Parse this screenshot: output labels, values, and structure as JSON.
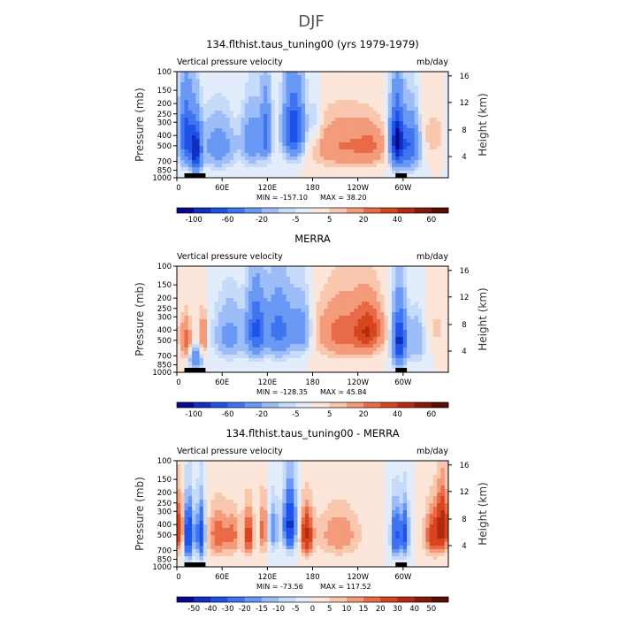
{
  "figure_title": "DJF",
  "chart_data": [
    {
      "type": "heatmap",
      "title": "134.flthist.taus_tuning00 (yrs 1979-1979)",
      "left_label": "Vertical pressure velocity",
      "units": "mb/day",
      "ylabel": "Pressure (mb)",
      "ylabel_right": "Height (km)",
      "x_ticks": [
        "0",
        "60E",
        "120E",
        "180",
        "120W",
        "60W"
      ],
      "y_ticks": [
        "100",
        "150",
        "200",
        "250",
        "300",
        "400",
        "500",
        "700",
        "850",
        "1000"
      ],
      "y_right_ticks": [
        "16",
        "12",
        "8",
        "4"
      ],
      "min_label": "MIN = -157.10",
      "max_label": "MAX = 38.20",
      "colorbar_levels": [
        -100,
        -80,
        -60,
        -40,
        -20,
        -10,
        -5,
        0,
        5,
        10,
        20,
        30,
        40,
        50,
        60
      ],
      "colorbar_labels": [
        "-100",
        "-60",
        "-20",
        "-5",
        "5",
        "20",
        "40",
        "60"
      ],
      "colorbar_colors": [
        "#08088e",
        "#0d2fc2",
        "#1e52e8",
        "#3f74f1",
        "#6a98f5",
        "#9cbdf7",
        "#c6daf9",
        "#e3ecfa",
        "#fce6da",
        "#f9c7ae",
        "#f39b7a",
        "#e96a46",
        "#d6451e",
        "#b42a10",
        "#871807",
        "#5a0c02"
      ],
      "xlim": [
        0,
        360
      ],
      "ylim_mb": [
        1000,
        100
      ],
      "field_features": [
        {
          "lon": 12,
          "plev": 400,
          "value": -70,
          "lon_width": 6,
          "p_depth": 420
        },
        {
          "lon": 25,
          "plev": 550,
          "value": -95,
          "lon_width": 5,
          "p_depth": 420
        },
        {
          "lon": 55,
          "plev": 500,
          "value": -30,
          "lon_width": 15,
          "p_depth": 380
        },
        {
          "lon": 100,
          "plev": 450,
          "value": -35,
          "lon_width": 9,
          "p_depth": 380
        },
        {
          "lon": 118,
          "plev": 380,
          "value": -50,
          "lon_width": 5,
          "p_depth": 360
        },
        {
          "lon": 155,
          "plev": 350,
          "value": -80,
          "lon_width": 9,
          "p_depth": 360
        },
        {
          "lon": 183,
          "plev": 300,
          "value": -10,
          "lon_width": 6,
          "p_depth": 250
        },
        {
          "lon": 220,
          "plev": 500,
          "value": 20,
          "lon_width": 28,
          "p_depth": 400
        },
        {
          "lon": 258,
          "plev": 500,
          "value": 15,
          "lon_width": 14,
          "p_depth": 320
        },
        {
          "lon": 292,
          "plev": 450,
          "value": -110,
          "lon_width": 6,
          "p_depth": 420
        },
        {
          "lon": 310,
          "plev": 500,
          "value": -60,
          "lon_width": 8,
          "p_depth": 380
        },
        {
          "lon": 340,
          "plev": 400,
          "value": 8,
          "lon_width": 14,
          "p_depth": 300
        }
      ]
    },
    {
      "type": "heatmap",
      "title": "MERRA",
      "left_label": "Vertical pressure velocity",
      "units": "mb/day",
      "ylabel": "Pressure (mb)",
      "ylabel_right": "Height (km)",
      "x_ticks": [
        "0",
        "60E",
        "120E",
        "180",
        "120W",
        "60W"
      ],
      "y_ticks": [
        "100",
        "150",
        "200",
        "250",
        "300",
        "400",
        "500",
        "700",
        "850",
        "1000"
      ],
      "y_right_ticks": [
        "16",
        "12",
        "8",
        "4"
      ],
      "min_label": "MIN = -128.35",
      "max_label": "MAX = 45.84",
      "colorbar_levels": [
        -100,
        -80,
        -60,
        -40,
        -20,
        -10,
        -5,
        0,
        5,
        10,
        20,
        30,
        40,
        50,
        60
      ],
      "colorbar_labels": [
        "-100",
        "-60",
        "-20",
        "-5",
        "5",
        "20",
        "40",
        "60"
      ],
      "colorbar_colors": [
        "#08088e",
        "#0d2fc2",
        "#1e52e8",
        "#3f74f1",
        "#6a98f5",
        "#9cbdf7",
        "#c6daf9",
        "#e3ecfa",
        "#fce6da",
        "#f9c7ae",
        "#f39b7a",
        "#e96a46",
        "#d6451e",
        "#b42a10",
        "#871807",
        "#5a0c02"
      ],
      "xlim": [
        0,
        360
      ],
      "ylim_mb": [
        1000,
        100
      ],
      "field_features": [
        {
          "lon": 12,
          "plev": 500,
          "value": 25,
          "lon_width": 5,
          "p_depth": 300
        },
        {
          "lon": 35,
          "plev": 450,
          "value": 20,
          "lon_width": 4,
          "p_depth": 300
        },
        {
          "lon": 25,
          "plev": 750,
          "value": -40,
          "lon_width": 5,
          "p_depth": 250
        },
        {
          "lon": 70,
          "plev": 450,
          "value": -25,
          "lon_width": 14,
          "p_depth": 380
        },
        {
          "lon": 105,
          "plev": 400,
          "value": -65,
          "lon_width": 8,
          "p_depth": 380
        },
        {
          "lon": 135,
          "plev": 400,
          "value": -50,
          "lon_width": 12,
          "p_depth": 380
        },
        {
          "lon": 165,
          "plev": 400,
          "value": -30,
          "lon_width": 9,
          "p_depth": 340
        },
        {
          "lon": 222,
          "plev": 420,
          "value": 25,
          "lon_width": 26,
          "p_depth": 380
        },
        {
          "lon": 255,
          "plev": 400,
          "value": 30,
          "lon_width": 12,
          "p_depth": 300
        },
        {
          "lon": 295,
          "plev": 500,
          "value": -90,
          "lon_width": 6,
          "p_depth": 420
        },
        {
          "lon": 318,
          "plev": 500,
          "value": -20,
          "lon_width": 8,
          "p_depth": 360
        },
        {
          "lon": 345,
          "plev": 400,
          "value": 6,
          "lon_width": 12,
          "p_depth": 300
        }
      ]
    },
    {
      "type": "heatmap",
      "title": "134.flthist.taus_tuning00 - MERRA",
      "left_label": "Vertical pressure velocity",
      "units": "mb/day",
      "ylabel": "Pressure (mb)",
      "ylabel_right": "Height (km)",
      "x_ticks": [
        "0",
        "60E",
        "120E",
        "180",
        "120W",
        "60W"
      ],
      "y_ticks": [
        "100",
        "150",
        "200",
        "250",
        "300",
        "400",
        "500",
        "700",
        "850",
        "1000"
      ],
      "y_right_ticks": [
        "16",
        "12",
        "8",
        "4"
      ],
      "min_label": "MIN = -73.56",
      "max_label": "MAX = 117.52",
      "colorbar_levels": [
        -50,
        -40,
        -30,
        -20,
        -15,
        -10,
        -5,
        0,
        5,
        10,
        15,
        20,
        30,
        40,
        50
      ],
      "colorbar_labels": [
        "-50",
        "-40",
        "-30",
        "-20",
        "-15",
        "-10",
        "-5",
        "0",
        "5",
        "10",
        "15",
        "20",
        "30",
        "40",
        "50"
      ],
      "colorbar_colors": [
        "#08088e",
        "#0d2fc2",
        "#1e52e8",
        "#3f74f1",
        "#6a98f5",
        "#9cbdf7",
        "#c6daf9",
        "#e3ecfa",
        "#fce6da",
        "#f9c7ae",
        "#f39b7a",
        "#e96a46",
        "#d6451e",
        "#b42a10",
        "#871807",
        "#5a0c02"
      ],
      "xlim": [
        0,
        360
      ],
      "ylim_mb": [
        1000,
        100
      ],
      "field_features": [
        {
          "lon": 5,
          "plev": 450,
          "value": 30,
          "lon_width": 4,
          "p_depth": 380
        },
        {
          "lon": 15,
          "plev": 500,
          "value": -45,
          "lon_width": 5,
          "p_depth": 420
        },
        {
          "lon": 32,
          "plev": 500,
          "value": -40,
          "lon_width": 4,
          "p_depth": 420
        },
        {
          "lon": 55,
          "plev": 500,
          "value": 20,
          "lon_width": 10,
          "p_depth": 380
        },
        {
          "lon": 75,
          "plev": 500,
          "value": 15,
          "lon_width": 6,
          "p_depth": 350
        },
        {
          "lon": 95,
          "plev": 500,
          "value": 25,
          "lon_width": 5,
          "p_depth": 380
        },
        {
          "lon": 115,
          "plev": 450,
          "value": 20,
          "lon_width": 4,
          "p_depth": 380
        },
        {
          "lon": 128,
          "plev": 450,
          "value": -20,
          "lon_width": 5,
          "p_depth": 350
        },
        {
          "lon": 150,
          "plev": 400,
          "value": -45,
          "lon_width": 6,
          "p_depth": 380
        },
        {
          "lon": 172,
          "plev": 500,
          "value": 30,
          "lon_width": 6,
          "p_depth": 380
        },
        {
          "lon": 215,
          "plev": 500,
          "value": 15,
          "lon_width": 20,
          "p_depth": 380
        },
        {
          "lon": 290,
          "plev": 500,
          "value": -35,
          "lon_width": 4,
          "p_depth": 400
        },
        {
          "lon": 302,
          "plev": 500,
          "value": -35,
          "lon_width": 4,
          "p_depth": 400
        },
        {
          "lon": 340,
          "plev": 500,
          "value": 25,
          "lon_width": 8,
          "p_depth": 380
        },
        {
          "lon": 352,
          "plev": 400,
          "value": 30,
          "lon_width": 5,
          "p_depth": 380
        }
      ]
    }
  ]
}
